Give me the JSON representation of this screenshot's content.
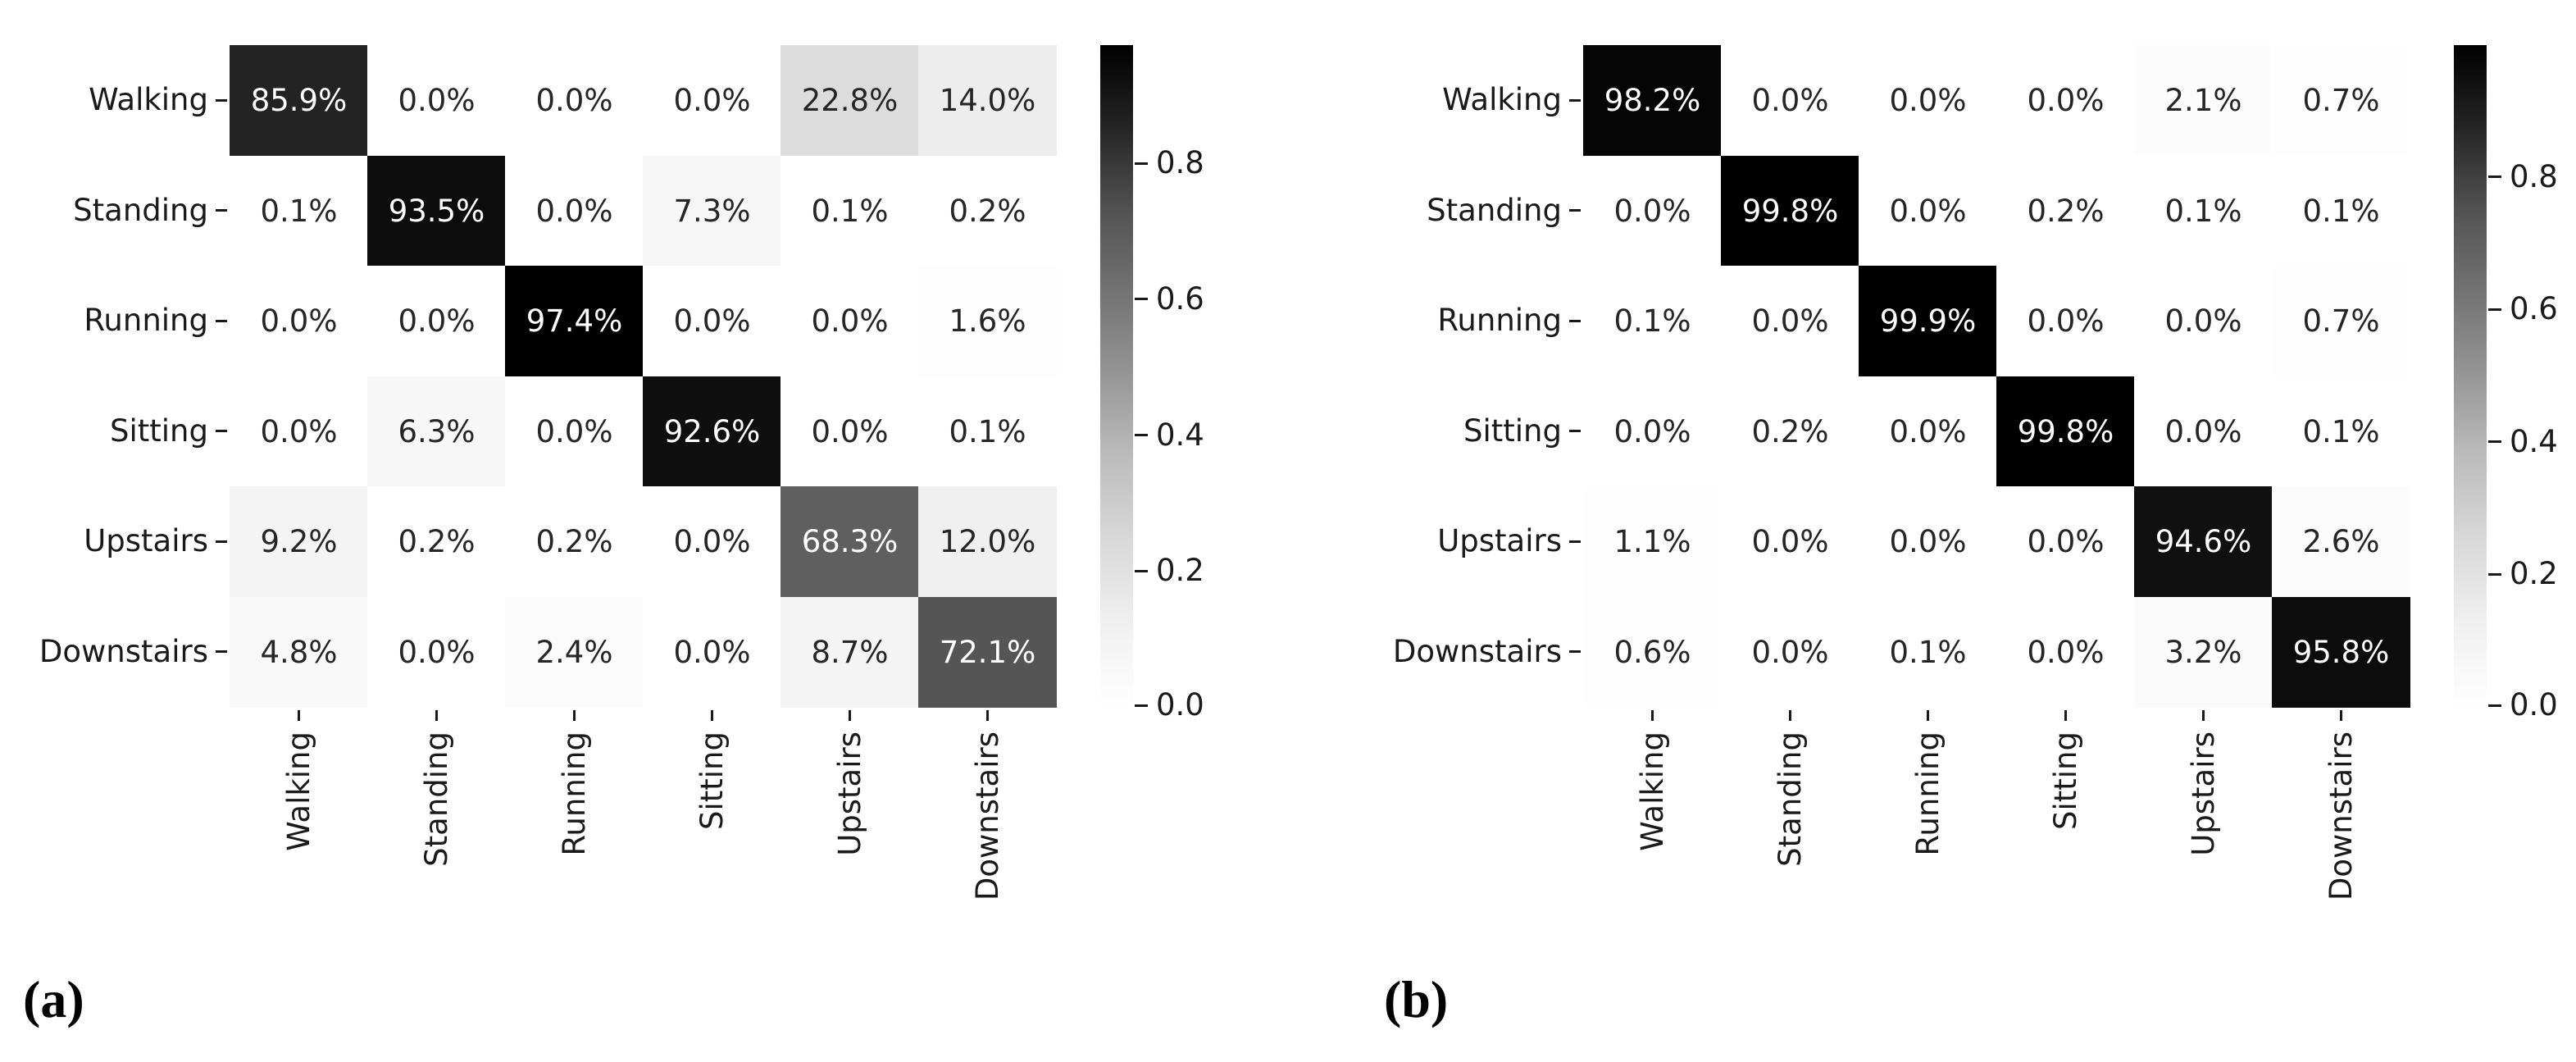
{
  "figure": {
    "background": "#ffffff",
    "text_color": "#1a1a1a"
  },
  "chart_data": [
    {
      "type": "heatmap",
      "panel_label": "(a)",
      "rows": [
        "Walking",
        "Standing",
        "Running",
        "Sitting",
        "Upstairs",
        "Downstairs"
      ],
      "cols": [
        "Walking",
        "Standing",
        "Running",
        "Sitting",
        "Upstairs",
        "Downstairs"
      ],
      "values_percent": [
        [
          85.9,
          0.0,
          0.0,
          0.0,
          22.8,
          14.0
        ],
        [
          0.1,
          93.5,
          0.0,
          7.3,
          0.1,
          0.2
        ],
        [
          0.0,
          0.0,
          97.4,
          0.0,
          0.0,
          1.6
        ],
        [
          0.0,
          6.3,
          0.0,
          92.6,
          0.0,
          0.1
        ],
        [
          9.2,
          0.2,
          0.2,
          0.0,
          68.3,
          12.0
        ],
        [
          4.8,
          0.0,
          2.4,
          0.0,
          8.7,
          72.1
        ]
      ],
      "annotation_format": "percent_one_decimal",
      "colorbar": {
        "ticks": [
          0.8,
          0.6,
          0.4,
          0.2,
          0.0
        ],
        "vmin": 0.0,
        "vmax": 0.974,
        "position": "right"
      },
      "colormap": {
        "name": "Greys",
        "anchors": [
          "#ffffff",
          "#f0f0f0",
          "#d9d9d9",
          "#bdbdbd",
          "#969696",
          "#737373",
          "#525252",
          "#252525",
          "#000000"
        ]
      },
      "annotation_colors": {
        "dark_text": "#262626",
        "light_text": "#ffffff"
      },
      "grid": false,
      "x_tick_rotation": "vertical-bottom-to-top"
    },
    {
      "type": "heatmap",
      "panel_label": "(b)",
      "rows": [
        "Walking",
        "Standing",
        "Running",
        "Sitting",
        "Upstairs",
        "Downstairs"
      ],
      "cols": [
        "Walking",
        "Standing",
        "Running",
        "Sitting",
        "Upstairs",
        "Downstairs"
      ],
      "values_percent": [
        [
          98.2,
          0.0,
          0.0,
          0.0,
          2.1,
          0.7
        ],
        [
          0.0,
          99.8,
          0.0,
          0.2,
          0.1,
          0.1
        ],
        [
          0.1,
          0.0,
          99.9,
          0.0,
          0.0,
          0.7
        ],
        [
          0.0,
          0.2,
          0.0,
          99.8,
          0.0,
          0.1
        ],
        [
          1.1,
          0.0,
          0.0,
          0.0,
          94.6,
          2.6
        ],
        [
          0.6,
          0.0,
          0.1,
          0.0,
          3.2,
          95.8
        ]
      ],
      "annotation_format": "percent_one_decimal",
      "colorbar": {
        "ticks": [
          0.8,
          0.6,
          0.4,
          0.2,
          0.0
        ],
        "vmin": 0.0,
        "vmax": 0.999,
        "position": "right"
      },
      "colormap": {
        "name": "Greys",
        "anchors": [
          "#ffffff",
          "#f0f0f0",
          "#d9d9d9",
          "#bdbdbd",
          "#969696",
          "#737373",
          "#525252",
          "#252525",
          "#000000"
        ]
      },
      "annotation_colors": {
        "dark_text": "#262626",
        "light_text": "#ffffff"
      },
      "grid": false,
      "x_tick_rotation": "vertical-bottom-to-top"
    }
  ]
}
